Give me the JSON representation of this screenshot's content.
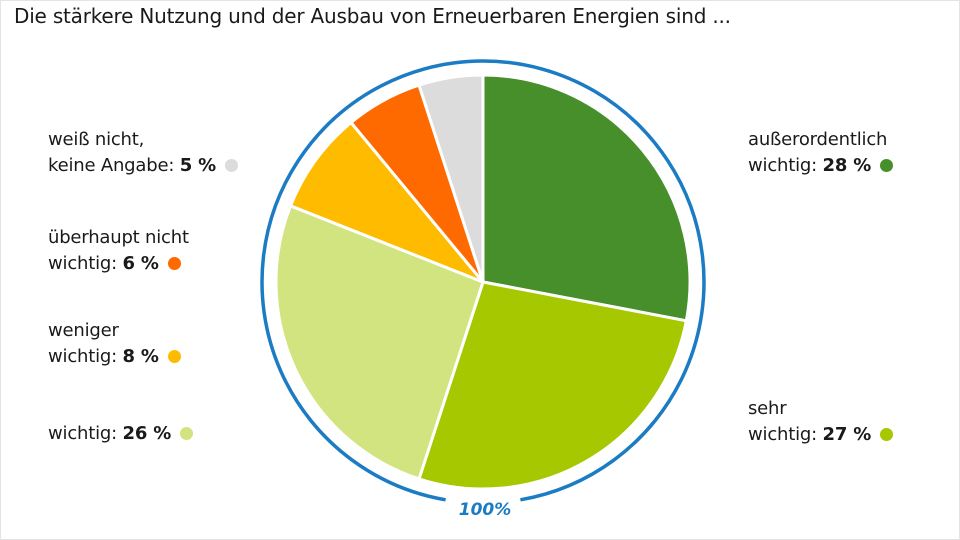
{
  "chart_data": {
    "type": "pie",
    "title": "Die stärkere Nutzung und der Ausbau von Erneuerbaren Energien sind ...",
    "categories": [
      "außerordentlich\nwichtig:",
      "sehr\nwichtig:",
      "wichtig:",
      "weniger\nwichtig:",
      "überhaupt nicht\nwichtig:",
      "weiß nicht,\nkeine Angabe:"
    ],
    "values": [
      28,
      27,
      26,
      8,
      6,
      5
    ],
    "value_labels": [
      "28 %",
      "27 %",
      "26 %",
      "8 %",
      "6 %",
      "5 %"
    ],
    "colors": [
      "#468f2b",
      "#a5c800",
      "#d2e47f",
      "#ffbb00",
      "#ff6a00",
      "#dcdcdc"
    ],
    "total_label": "100%",
    "ring_color": "#1b7cc4"
  }
}
